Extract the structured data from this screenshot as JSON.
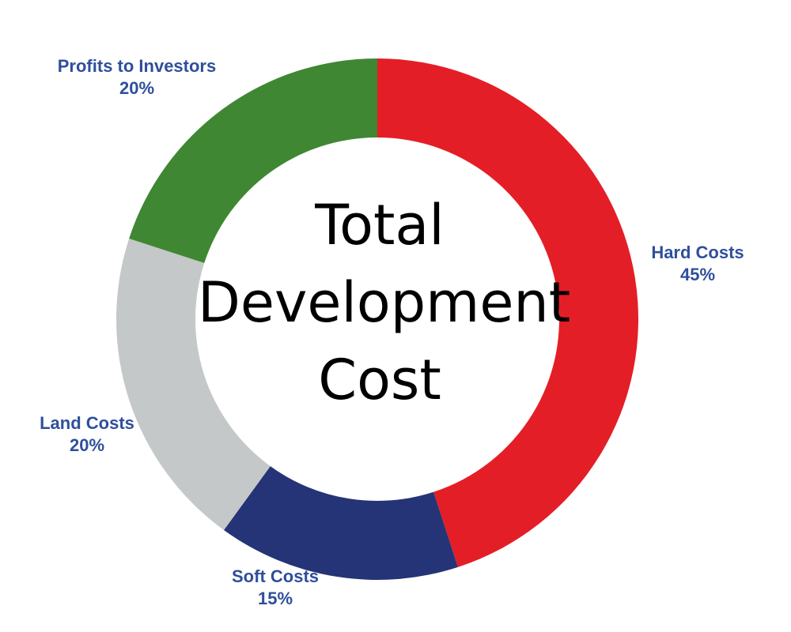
{
  "chart_data": {
    "type": "pie",
    "donut": true,
    "center_title": [
      "Total",
      "Development",
      "Cost"
    ],
    "categories": [
      "Hard Costs",
      "Soft Costs",
      "Land Costs",
      "Profits to Investors"
    ],
    "values": [
      45,
      15,
      20,
      20
    ],
    "value_labels": [
      "45%",
      "15%",
      "20%",
      "20%"
    ],
    "colors": [
      "#e41e26",
      "#253476",
      "#c4c8c9",
      "#3f8733"
    ],
    "label_color": "#2f4f9c",
    "start": "top",
    "direction": "clockwise",
    "legend": "none"
  }
}
